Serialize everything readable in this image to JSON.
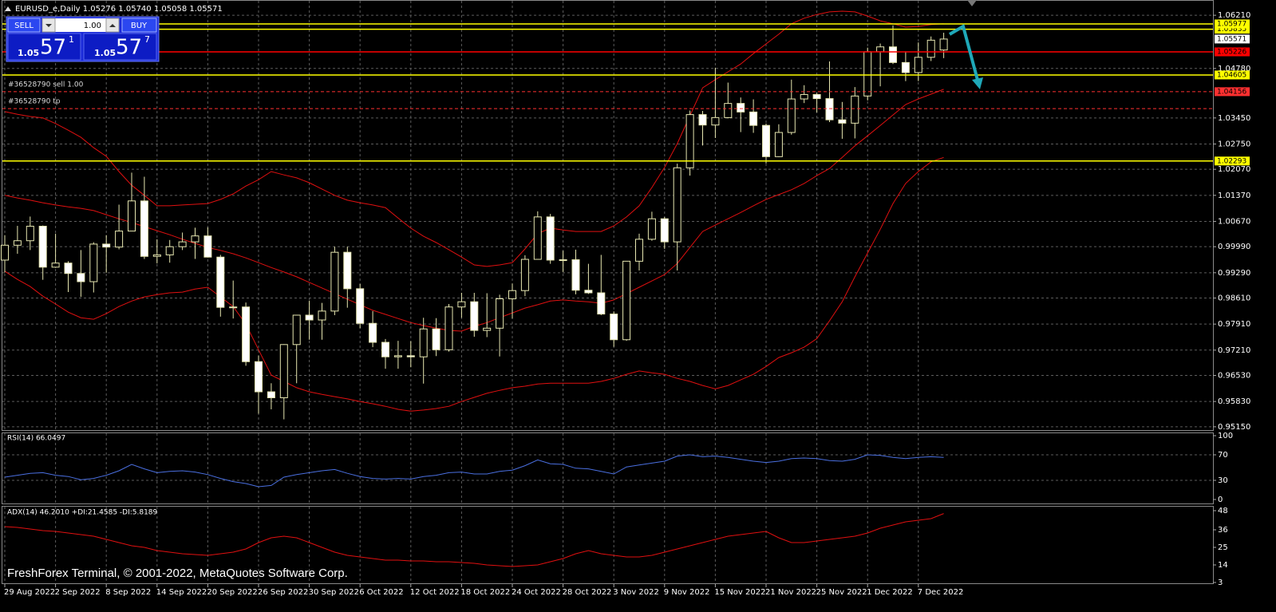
{
  "chart_data": [
    {
      "type": "candlestick",
      "title": "EURUSD_e,Daily  1.05276 1.05740 1.05058 1.05571",
      "categories": [
        "29 Aug 2022",
        null,
        null,
        null,
        "2 Sep 2022",
        null,
        null,
        null,
        "8 Sep 2022",
        null,
        null,
        null,
        "14 Sep 2022",
        null,
        null,
        null,
        "20 Sep 2022",
        null,
        null,
        null,
        "26 Sep 2022",
        null,
        null,
        null,
        "30 Sep 2022",
        null,
        null,
        null,
        "6 Oct 2022",
        null,
        null,
        null,
        "12 Oct 2022",
        null,
        null,
        null,
        "18 Oct 2022",
        null,
        null,
        null,
        "24 Oct 2022",
        null,
        null,
        null,
        "28 Oct 2022",
        null,
        null,
        null,
        "3 Nov 2022",
        null,
        null,
        null,
        "9 Nov 2022",
        null,
        null,
        null,
        "15 Nov 2022",
        null,
        null,
        null,
        "21 Nov 2022",
        null,
        null,
        null,
        "25 Nov 2022",
        null,
        null,
        null,
        "1 Dec 2022",
        null,
        null,
        null,
        "7 Dec 2022",
        null,
        null
      ],
      "open": [
        0.9963,
        1.0003,
        1.0015,
        1.0054,
        0.9944,
        0.9955,
        0.9927,
        0.9905,
        1.0006,
        0.9998,
        1.0041,
        1.0122,
        0.9973,
        0.9977,
        0.9999,
        1.0012,
        1.0028,
        0.9971,
        0.9836,
        0.9837,
        0.969,
        0.9609,
        0.9593,
        0.9736,
        0.9815,
        0.9802,
        0.9826,
        0.9984,
        0.9886,
        0.9793,
        0.9742,
        0.9703,
        0.9706,
        0.9703,
        0.9778,
        0.9722,
        0.9837,
        0.9851,
        0.9774,
        0.978,
        0.9859,
        0.9881,
        0.9965,
        1.0079,
        0.9963,
        0.9964,
        0.9882,
        0.9875,
        0.9818,
        0.9749,
        0.996,
        1.0019,
        1.0074,
        1.0012,
        1.0211,
        1.0354,
        1.0326,
        1.0346,
        1.0384,
        1.0361,
        1.0325,
        1.0241,
        1.0306,
        1.0396,
        1.0408,
        1.0397,
        1.034,
        1.0331,
        1.0404,
        1.0523,
        1.0536,
        1.0494,
        1.0467,
        1.0508,
        1.05276
      ],
      "high": [
        1.003,
        1.0055,
        1.008,
        1.0056,
        1.0034,
        0.996,
        0.999,
        1.0011,
        1.003,
        1.0112,
        1.0198,
        1.0187,
        1.0019,
        1.0017,
        1.0037,
        1.005,
        1.0051,
        0.9977,
        0.9908,
        0.9849,
        0.9706,
        0.9632,
        0.9737,
        0.9815,
        0.9854,
        0.9848,
        0.9999,
        0.9999,
        0.9899,
        0.9826,
        0.9751,
        0.9746,
        0.9745,
        0.9808,
        0.9807,
        0.9845,
        0.9875,
        0.9875,
        0.9874,
        0.987,
        0.99,
        0.9976,
        1.0094,
        1.0087,
        0.9988,
        0.9991,
        0.9953,
        0.9977,
        0.9825,
        0.996,
        1.0034,
        1.0093,
        1.0079,
        1.0222,
        1.0365,
        1.0364,
        1.048,
        1.044,
        1.04,
        1.0395,
        1.033,
        1.0328,
        1.0448,
        1.0433,
        1.0412,
        1.0497,
        1.0388,
        1.0428,
        1.0534,
        1.0545,
        1.0594,
        1.0524,
        1.0548,
        1.0564,
        1.0574
      ],
      "low": [
        0.993,
        0.998,
        0.999,
        0.991,
        0.9942,
        0.9877,
        0.9864,
        0.9876,
        0.9929,
        0.9992,
        1.004,
        0.9966,
        0.9954,
        0.9956,
        0.999,
        0.9966,
        0.997,
        0.9811,
        0.9806,
        0.9679,
        0.955,
        0.9562,
        0.9535,
        0.9632,
        0.9749,
        0.9749,
        0.9815,
        0.9835,
        0.978,
        0.9729,
        0.9671,
        0.9671,
        0.9675,
        0.9631,
        0.9705,
        0.9717,
        0.9808,
        0.9757,
        0.9756,
        0.9704,
        0.9806,
        0.9866,
        0.9965,
        0.9953,
        0.9931,
        0.9871,
        0.9872,
        0.9815,
        0.973,
        0.9746,
        0.9935,
        1.0015,
        0.9993,
        0.9935,
        1.019,
        1.0271,
        1.0291,
        1.0344,
        1.0307,
        1.0305,
        1.0223,
        1.024,
        1.03,
        1.0385,
        1.036,
        1.0334,
        1.0289,
        1.029,
        1.0392,
        1.043,
        1.049,
        1.0444,
        1.0444,
        1.0498,
        1.05058
      ],
      "close": [
        1.0003,
        1.0015,
        1.0054,
        0.9944,
        0.9955,
        0.9927,
        0.9905,
        1.0006,
        0.9998,
        1.0041,
        1.0122,
        0.9973,
        0.9977,
        0.9999,
        1.0012,
        1.0028,
        0.9971,
        0.9836,
        0.9837,
        0.969,
        0.9609,
        0.9593,
        0.9736,
        0.9815,
        0.9802,
        0.9826,
        0.9984,
        0.9886,
        0.9793,
        0.9742,
        0.9703,
        0.9706,
        0.9703,
        0.9778,
        0.9722,
        0.9837,
        0.9851,
        0.9774,
        0.978,
        0.9859,
        0.9881,
        0.9965,
        1.0079,
        0.9963,
        0.9964,
        0.9882,
        0.9875,
        0.9818,
        0.9749,
        0.996,
        1.0019,
        1.0074,
        1.0012,
        1.0211,
        1.0354,
        1.0326,
        1.0346,
        1.0384,
        1.0361,
        1.0325,
        1.0241,
        1.0306,
        1.0396,
        1.0408,
        1.0397,
        1.034,
        1.0331,
        1.0404,
        1.0523,
        1.0536,
        1.0494,
        1.0467,
        1.0508,
        1.0554,
        1.05571
      ],
      "up_color": "#000000",
      "down_color": "#ffffff",
      "wick_color": "#e6e6b0",
      "bands": [
        {
          "color": "#e01010",
          "values": [
            1.0362,
            1.0355,
            1.0349,
            1.0345,
            1.033,
            1.0312,
            1.0293,
            1.0265,
            1.0242,
            1.0201,
            1.0164,
            1.0137,
            1.0109,
            1.0109,
            1.0111,
            1.0113,
            1.0115,
            1.0126,
            1.0141,
            1.0162,
            1.0179,
            1.0201,
            1.0192,
            1.0184,
            1.0171,
            1.0154,
            1.0137,
            1.0124,
            1.0117,
            1.0111,
            1.0104,
            1.0076,
            1.0049,
            1.0027,
            1.001,
            0.9991,
            0.9971,
            0.995,
            0.9946,
            0.995,
            0.9956,
            0.9993,
            1.0034,
            1.0049,
            1.0044,
            1.004,
            1.004,
            1.004,
            1.0055,
            1.0079,
            1.0109,
            1.0158,
            1.0212,
            1.0276,
            1.0351,
            1.0426,
            1.0448,
            1.0469,
            1.049,
            1.0518,
            1.0544,
            1.057,
            1.0598,
            1.0613,
            1.0623,
            1.063,
            1.0632,
            1.063,
            1.0619,
            1.0606,
            1.0598,
            1.0589,
            1.0591,
            1.0596,
            1.0598
          ]
        },
        {
          "color": "#e01010",
          "values": [
            1.0137,
            1.013,
            1.0124,
            1.0117,
            1.0111,
            1.0106,
            1.0102,
            1.0096,
            1.0085,
            1.0074,
            1.0064,
            1.0053,
            1.0042,
            1.0031,
            1.0019,
            1.0008,
            0.9997,
            0.9989,
            0.998,
            0.9969,
            0.9956,
            0.9943,
            0.9931,
            0.9918,
            0.9903,
            0.9888,
            0.9873,
            0.9858,
            0.9843,
            0.9828,
            0.9817,
            0.9806,
            0.9795,
            0.9787,
            0.978,
            0.9774,
            0.9772,
            0.9785,
            0.9795,
            0.9808,
            0.9821,
            0.9834,
            0.9843,
            0.9853,
            0.9856,
            0.9853,
            0.9851,
            0.9847,
            0.9856,
            0.9873,
            0.989,
            0.9907,
            0.9924,
            0.9954,
            0.9997,
            1.004,
            1.0057,
            1.0074,
            1.0091,
            1.0109,
            1.0126,
            1.0139,
            1.0152,
            1.0169,
            1.019,
            1.0209,
            1.0239,
            1.027,
            1.0297,
            1.0325,
            1.0353,
            1.0381,
            1.0396,
            1.0409,
            1.0422
          ]
        },
        {
          "color": "#e01010",
          "values": [
            0.9933,
            0.9911,
            0.9892,
            0.9866,
            0.9845,
            0.9823,
            0.9808,
            0.9804,
            0.9819,
            0.9838,
            0.9853,
            0.9864,
            0.987,
            0.9875,
            0.9877,
            0.9885,
            0.989,
            0.9864,
            0.9838,
            0.9791,
            0.9722,
            0.9654,
            0.9637,
            0.962,
            0.9609,
            0.9602,
            0.9596,
            0.959,
            0.9583,
            0.9577,
            0.957,
            0.9562,
            0.9557,
            0.956,
            0.9564,
            0.957,
            0.9583,
            0.9594,
            0.9605,
            0.9613,
            0.962,
            0.9624,
            0.963,
            0.9632,
            0.9632,
            0.9632,
            0.9632,
            0.9637,
            0.9645,
            0.9656,
            0.9665,
            0.966,
            0.9656,
            0.9645,
            0.9637,
            0.9626,
            0.9617,
            0.9626,
            0.9641,
            0.9656,
            0.9677,
            0.9701,
            0.9714,
            0.9729,
            0.9752,
            0.98,
            0.9851,
            0.9918,
            0.9982,
            1.0046,
            1.0115,
            1.0169,
            1.0201,
            1.0227,
            1.0239
          ]
        }
      ],
      "levels": [
        {
          "value": 1.05977,
          "color": "#ffff00"
        },
        {
          "value": 1.05835,
          "color": "#ffff00"
        },
        {
          "value": 1.05226,
          "color": "#ff0000"
        },
        {
          "value": 1.04605,
          "color": "#ffff00"
        },
        {
          "value": 1.02293,
          "color": "#ffff00"
        }
      ],
      "orders": [
        {
          "label": "#36528790 sell 1.00",
          "value": 1.04156,
          "color": "#ff3030",
          "tagged": true
        },
        {
          "label": "#36528790 tp",
          "value": 1.037,
          "color": "#ff3030",
          "tagged": false
        }
      ],
      "bid": 1.05571,
      "ylim": [
        0.9504,
        1.0662
      ],
      "yticks": [
        {
          "value": 1.0621,
          "label": "1.06210"
        },
        {
          "value": 1.0478,
          "label": "1.04780"
        },
        {
          "value": 1.0345,
          "label": "1.03450"
        },
        {
          "value": 1.0275,
          "label": "1.02750"
        },
        {
          "value": 1.0207,
          "label": "1.02070"
        },
        {
          "value": 1.0137,
          "label": "1.01370"
        },
        {
          "value": 1.0067,
          "label": "1.00670"
        },
        {
          "value": 0.9999,
          "label": "0.99990"
        },
        {
          "value": 0.9929,
          "label": "0.99290"
        },
        {
          "value": 0.9861,
          "label": "0.98610"
        },
        {
          "value": 0.9791,
          "label": "0.97910"
        },
        {
          "value": 0.9721,
          "label": "0.97210"
        },
        {
          "value": 0.9653,
          "label": "0.96530"
        },
        {
          "value": 0.9583,
          "label": "0.95830"
        },
        {
          "value": 0.9515,
          "label": "0.95150"
        }
      ],
      "grid": true
    },
    {
      "type": "line",
      "title": "RSI(14) 66.0497",
      "color": "#4a6fe0",
      "values": [
        35,
        38,
        41,
        42,
        38,
        36,
        31,
        33,
        38,
        45,
        55,
        48,
        42,
        44,
        45,
        43,
        39,
        33,
        28,
        25,
        20,
        22,
        35,
        39,
        42,
        45,
        47,
        41,
        36,
        33,
        32,
        33,
        32,
        36,
        38,
        42,
        43,
        40,
        40,
        44,
        46,
        53,
        62,
        56,
        55,
        49,
        48,
        44,
        40,
        51,
        54,
        57,
        60,
        68,
        70,
        67,
        68,
        66,
        63,
        60,
        58,
        60,
        64,
        65,
        64,
        61,
        60,
        63,
        70,
        69,
        66,
        64,
        66,
        67,
        66.0497
      ],
      "ylim": [
        0,
        100
      ],
      "yticks": [
        100,
        70,
        30,
        0
      ],
      "levels": [
        70,
        30
      ],
      "grid": false
    },
    {
      "type": "line",
      "title": "ADX(14) 46.2010 +DI:21.4585 -DI:5.8189",
      "color": "#e01010",
      "values": [
        38,
        37.5,
        36.5,
        35.5,
        35,
        34,
        33,
        32,
        30,
        28,
        26,
        25,
        23,
        22,
        21,
        20.5,
        20,
        21,
        22,
        24,
        28,
        31,
        32,
        31,
        28,
        25,
        22,
        20,
        19,
        18,
        17,
        17,
        16.5,
        16.5,
        16,
        16,
        15.5,
        15,
        14,
        13.5,
        13,
        13.5,
        14,
        16,
        18,
        21,
        23,
        21,
        20,
        19,
        19,
        20,
        22,
        24,
        26,
        28,
        30,
        32,
        33,
        34,
        35,
        31,
        28,
        28,
        29,
        30,
        31,
        32,
        34,
        37,
        39,
        41,
        42,
        43,
        46.201
      ],
      "ylim": [
        3,
        51
      ],
      "yticks": [
        48,
        36,
        25,
        14,
        3
      ],
      "grid": false
    }
  ],
  "trade_panel": {
    "sell": "SELL",
    "buy": "BUY",
    "lot": "1.00",
    "sell_price": {
      "big": "1.05",
      "pips": "57",
      "point": "1"
    },
    "buy_price": {
      "big": "1.05",
      "pips": "57",
      "point": "7"
    }
  },
  "footer": "FreshForex Terminal, © 2001-2022, MetaQuotes Software Corp."
}
